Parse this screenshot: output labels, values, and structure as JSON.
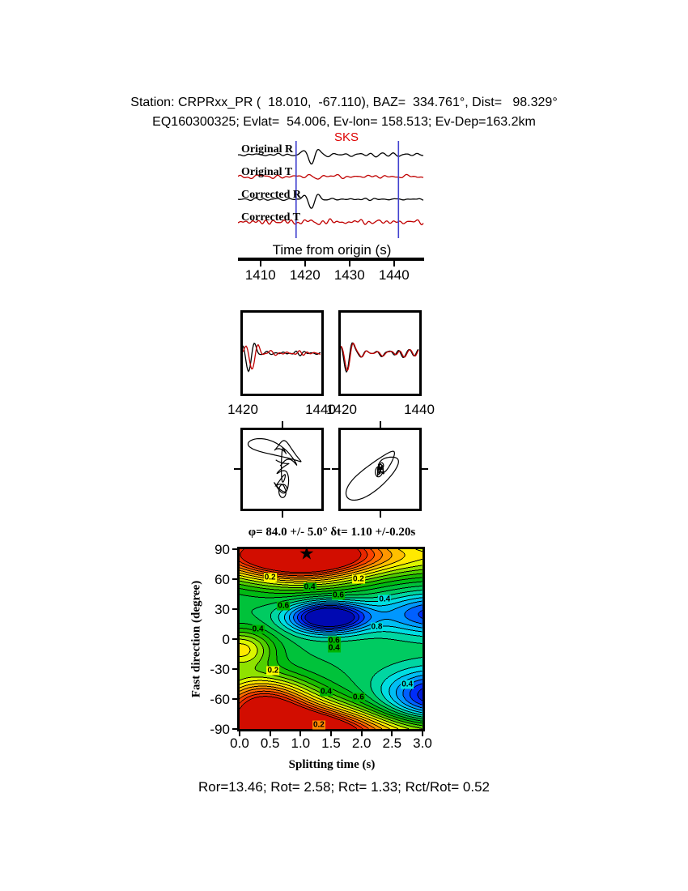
{
  "header": {
    "line1": "Station: CRPRxx_PR (  18.010,  -67.110), BAZ=  334.761°, Dist=   98.329°",
    "line2": "EQ160300325; Evlat=  54.006, Ev-lon= 158.513; Ev-Dep=163.2km"
  },
  "waveforms": {
    "phase": "SKS",
    "trace_labels": [
      "Original R",
      "Original T",
      "Corrected R",
      "Corrected T"
    ],
    "axis_title": "Time from origin (s)",
    "ticks": [
      1410,
      1420,
      1430,
      1440
    ],
    "window_s": [
      1418,
      1441
    ]
  },
  "window_panels": {
    "tick_labels": [
      "1420",
      "1440",
      "1420",
      "1440"
    ]
  },
  "result_line": "φ= 84.0 +/- 5.0° δt= 1.10 +/-0.20s",
  "misfit_map": {
    "ylabel": "Fast direction (degree)",
    "xlabel": "Splitting time (s)",
    "yticks": [
      90,
      60,
      30,
      0,
      -30,
      -60,
      -90
    ],
    "xticks": [
      "0.0",
      "0.5",
      "1.0",
      "1.5",
      "2.0",
      "2.5",
      "3.0"
    ],
    "best": {
      "dt": 1.1,
      "phi": 84
    },
    "star_glyph": "★",
    "annotations": [
      {
        "v": "0.2",
        "x": 0.5,
        "phi": 62,
        "bg": "#ffff00"
      },
      {
        "v": "0.4",
        "x": 1.15,
        "phi": 52,
        "bg": "#00b400"
      },
      {
        "v": "0.2",
        "x": 1.95,
        "phi": 60,
        "bg": "#ffff00"
      },
      {
        "v": "0.6",
        "x": 1.62,
        "phi": 44,
        "bg": "#00b400"
      },
      {
        "v": "0.4",
        "x": 2.38,
        "phi": 40,
        "bg": "#00e0e0"
      },
      {
        "v": "0.6",
        "x": 0.72,
        "phi": 33,
        "bg": "#00b400"
      },
      {
        "v": "0.4",
        "x": 0.3,
        "phi": 10,
        "bg": "#00b400"
      },
      {
        "v": "0.8",
        "x": 2.25,
        "phi": 12,
        "bg": "#00e0e0"
      },
      {
        "v": "0.6",
        "x": 1.55,
        "phi": -2,
        "bg": "#00b400"
      },
      {
        "v": "0.4",
        "x": 1.55,
        "phi": -9,
        "bg": "#00b400"
      },
      {
        "v": "0.2",
        "x": 0.55,
        "phi": -32,
        "bg": "#ffff00"
      },
      {
        "v": "0.4",
        "x": 1.42,
        "phi": -53,
        "bg": "#00b400"
      },
      {
        "v": "0.6",
        "x": 1.95,
        "phi": -58,
        "bg": "#00b400"
      },
      {
        "v": "0.2",
        "x": 1.3,
        "phi": -86,
        "bg": "#ff8800"
      },
      {
        "v": "0.4",
        "x": 2.75,
        "phi": -45,
        "bg": "#00e0e0"
      }
    ]
  },
  "footer": {
    "text": "Ror=13.46; Rot= 2.58; Rct= 1.33; Rct/Rot= 0.52",
    "Ror": 13.46,
    "Rot": 2.58,
    "Rct": 1.33,
    "Rct_over_Rot": 0.52
  },
  "colors": {
    "r_trace": "#000000",
    "t_trace": "#c00000",
    "phase": "#dd0000",
    "window_marker": "#4040cf"
  },
  "chart_data": [
    {
      "type": "line",
      "panel": "seismograms",
      "series": [
        {
          "name": "Original R",
          "color": "black"
        },
        {
          "name": "Original T",
          "color": "red"
        },
        {
          "name": "Corrected R",
          "color": "black"
        },
        {
          "name": "Corrected T",
          "color": "red"
        }
      ],
      "xlabel": "Time from origin (s)",
      "xticks": [
        1410,
        1420,
        1430,
        1440
      ],
      "xlim": [
        1405,
        1447
      ],
      "phase_pick": "SKS",
      "analysis_window_s": [
        1418,
        1441
      ],
      "note": "SKS pulse on R components near t=1421-1423 s; T components low amplitude"
    },
    {
      "type": "line",
      "panel": "windowed-components",
      "subpanels": [
        {
          "xlim": [
            1420,
            1440
          ],
          "xticks": [
            1420,
            1440
          ],
          "series": [
            "component-1 (black)",
            "component-2 (red)"
          ]
        },
        {
          "xlim": [
            1420,
            1440
          ],
          "xticks": [
            1420,
            1440
          ],
          "series": [
            "component-1 (black)",
            "component-2 (red)"
          ]
        }
      ]
    },
    {
      "type": "scatter",
      "panel": "particle-motion",
      "subpanels": [
        "original (elliptical, tangled)",
        "corrected (linearized, diagonal)"
      ]
    },
    {
      "type": "heatmap",
      "panel": "misfit-map",
      "title": "φ= 84.0 +/- 5.0° δt= 1.10 +/-0.20s",
      "xlabel": "Splitting time (s)",
      "ylabel": "Fast direction (degree)",
      "xlim": [
        0,
        3
      ],
      "ylim": [
        -90,
        90
      ],
      "xticks": [
        0.0,
        0.5,
        1.0,
        1.5,
        2.0,
        2.5,
        3.0
      ],
      "yticks": [
        90,
        60,
        30,
        0,
        -30,
        -60,
        -90
      ],
      "contour_levels": [
        0.2,
        0.4,
        0.6,
        0.8
      ],
      "best_fit": {
        "phi_deg": 84.0,
        "phi_err_deg": 5.0,
        "dt_s": 1.1,
        "dt_err_s": 0.2
      },
      "features": "maximum (red) band near phi=84 (and wrapped at -90) for dt 0.3-2.3 s, star at (1.1, 84); minimum (dark blue) near (1.4 s, 22 deg); cyan troughs at right edge near phi=25 and lower-right near phi=-60; orange lobes at left edge near phi=-10 and lower-left corner",
      "colormap": "jet-like, blue=low, red=high"
    }
  ]
}
